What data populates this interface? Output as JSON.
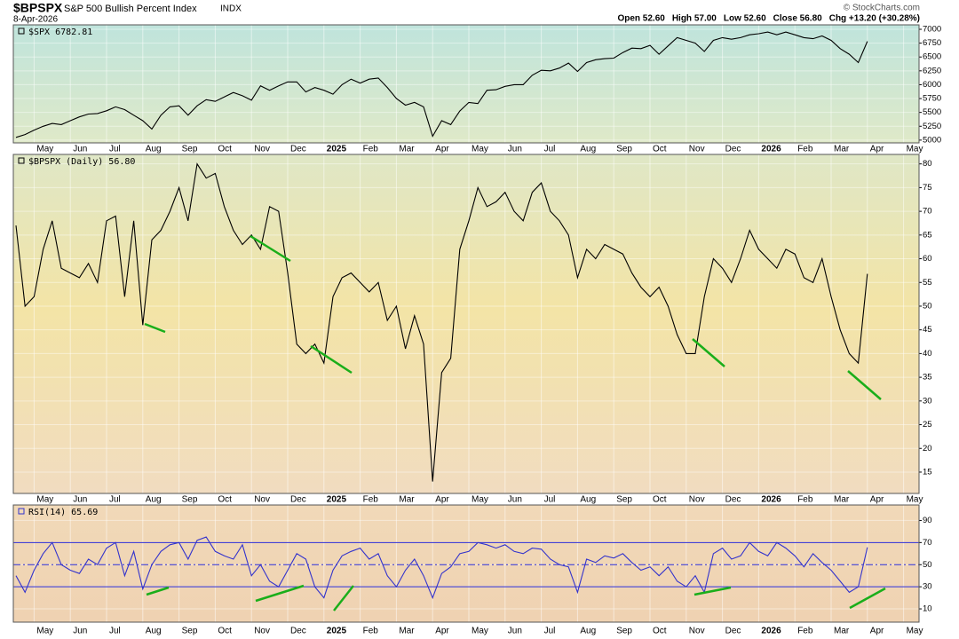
{
  "header": {
    "symbol": "$BPSPX",
    "name": "S&P 500 Bullish Percent Index",
    "exchange": "INDX",
    "date": "8-Apr-2026",
    "quote": [
      "Open 52.60",
      "High 57.00",
      "Low 52.60",
      "Close 56.80",
      "Chg +13.20 (+30.28%)"
    ],
    "copyright": "© StockCharts.com"
  },
  "chart_data": [
    {
      "type": "line",
      "label": "$SPX 6782.81",
      "color": "#000000",
      "categories": [
        null,
        null,
        "May",
        null,
        null,
        null,
        "Jun",
        null,
        null,
        null,
        "Jul",
        null,
        null,
        null,
        "Aug",
        null,
        null,
        null,
        "Sep",
        null,
        null,
        null,
        "Oct",
        null,
        null,
        null,
        "Nov",
        null,
        null,
        null,
        "Dec",
        null,
        null,
        null,
        "2025",
        null,
        null,
        null,
        "Feb",
        null,
        null,
        null,
        "Mar",
        null,
        null,
        null,
        "Apr",
        null,
        null,
        null,
        "May",
        null,
        null,
        null,
        "Jun",
        null,
        null,
        null,
        "Jul",
        null,
        null,
        null,
        "Aug",
        null,
        null,
        null,
        "Sep",
        null,
        null,
        null,
        "Oct",
        null,
        null,
        null,
        "Nov",
        null,
        null,
        null,
        "Dec",
        null,
        null,
        null,
        "2026",
        null,
        null,
        null,
        "Feb",
        null,
        null,
        null,
        "Mar",
        null,
        null,
        null,
        "Apr",
        null,
        null,
        null,
        "May"
      ],
      "values": [
        5050,
        5100,
        5180,
        5250,
        5300,
        5280,
        5350,
        5420,
        5470,
        5480,
        5530,
        5600,
        5550,
        5450,
        5350,
        5200,
        5450,
        5600,
        5620,
        5450,
        5620,
        5730,
        5700,
        5780,
        5860,
        5800,
        5720,
        5980,
        5900,
        5980,
        6050,
        6050,
        5870,
        5950,
        5900,
        5830,
        6000,
        6100,
        6030,
        6100,
        6120,
        5950,
        5750,
        5630,
        5680,
        5600,
        5070,
        5350,
        5280,
        5525,
        5680,
        5660,
        5900,
        5910,
        5970,
        6000,
        6000,
        6170,
        6260,
        6250,
        6300,
        6390,
        6240,
        6400,
        6450,
        6470,
        6480,
        6580,
        6660,
        6650,
        6710,
        6550,
        6700,
        6850,
        6800,
        6750,
        6600,
        6800,
        6850,
        6820,
        6850,
        6900,
        6920,
        6950,
        6900,
        6950,
        6900,
        6850,
        6830,
        6880,
        6800,
        6650,
        6550,
        6400,
        6782.81,
        null,
        null,
        null,
        null
      ],
      "ylim": [
        4950,
        7080
      ],
      "yticks": [
        5000,
        5250,
        5500,
        5750,
        6000,
        6250,
        6500,
        6750,
        7000
      ]
    },
    {
      "type": "line",
      "label": "$BPSPX (Daily) 56.80",
      "color": "#000000",
      "categories": [
        null,
        null,
        "May",
        null,
        null,
        null,
        "Jun",
        null,
        null,
        null,
        "Jul",
        null,
        null,
        null,
        "Aug",
        null,
        null,
        null,
        "Sep",
        null,
        null,
        null,
        "Oct",
        null,
        null,
        null,
        "Nov",
        null,
        null,
        null,
        "Dec",
        null,
        null,
        null,
        "2025",
        null,
        null,
        null,
        "Feb",
        null,
        null,
        null,
        "Mar",
        null,
        null,
        null,
        "Apr",
        null,
        null,
        null,
        "May",
        null,
        null,
        null,
        "Jun",
        null,
        null,
        null,
        "Jul",
        null,
        null,
        null,
        "Aug",
        null,
        null,
        null,
        "Sep",
        null,
        null,
        null,
        "Oct",
        null,
        null,
        null,
        "Nov",
        null,
        null,
        null,
        "Dec",
        null,
        null,
        null,
        "2026",
        null,
        null,
        null,
        "Feb",
        null,
        null,
        null,
        "Mar",
        null,
        null,
        null,
        "Apr",
        null,
        null,
        null,
        "May"
      ],
      "values": [
        67,
        50,
        52,
        62,
        68,
        58,
        57,
        56,
        59,
        55,
        68,
        69,
        52,
        68,
        46,
        64,
        66,
        70,
        75,
        68,
        80,
        77,
        78,
        71,
        66,
        63,
        65,
        62,
        71,
        70,
        57,
        42,
        40,
        42,
        38,
        52,
        56,
        57,
        55,
        53,
        55,
        47,
        50,
        41,
        48,
        42,
        13,
        36,
        39,
        62,
        68,
        75,
        71,
        72,
        74,
        70,
        68,
        74,
        76,
        70,
        68,
        65,
        56,
        62,
        60,
        63,
        62,
        61,
        57,
        54,
        52,
        54,
        50,
        44,
        40,
        40,
        52,
        60,
        58,
        55,
        60,
        66,
        62,
        60,
        58,
        62,
        61,
        56,
        55,
        60,
        52,
        45,
        40,
        38,
        56.8,
        null,
        null,
        null,
        null
      ],
      "ylim": [
        10.5,
        82
      ],
      "yticks": [
        15,
        20,
        25,
        30,
        35,
        40,
        45,
        50,
        55,
        60,
        65,
        70,
        75,
        80
      ]
    },
    {
      "type": "line",
      "label": "RSI(14) 65.69",
      "color": "#3333cc",
      "categories": [
        null,
        null,
        "May",
        null,
        null,
        null,
        "Jun",
        null,
        null,
        null,
        "Jul",
        null,
        null,
        null,
        "Aug",
        null,
        null,
        null,
        "Sep",
        null,
        null,
        null,
        "Oct",
        null,
        null,
        null,
        "Nov",
        null,
        null,
        null,
        "Dec",
        null,
        null,
        null,
        "2025",
        null,
        null,
        null,
        "Feb",
        null,
        null,
        null,
        "Mar",
        null,
        null,
        null,
        "Apr",
        null,
        null,
        null,
        "May",
        null,
        null,
        null,
        "Jun",
        null,
        null,
        null,
        "Jul",
        null,
        null,
        null,
        "Aug",
        null,
        null,
        null,
        "Sep",
        null,
        null,
        null,
        "Oct",
        null,
        null,
        null,
        "Nov",
        null,
        null,
        null,
        "Dec",
        null,
        null,
        null,
        "2026",
        null,
        null,
        null,
        "Feb",
        null,
        null,
        null,
        "Mar",
        null,
        null,
        null,
        "Apr",
        null,
        null,
        null,
        "May"
      ],
      "values": [
        40,
        25,
        45,
        60,
        70,
        50,
        45,
        42,
        55,
        50,
        65,
        70,
        40,
        62,
        28,
        50,
        62,
        68,
        70,
        55,
        72,
        75,
        62,
        58,
        55,
        68,
        40,
        50,
        35,
        30,
        45,
        60,
        55,
        30,
        20,
        45,
        58,
        62,
        65,
        55,
        60,
        40,
        30,
        45,
        55,
        40,
        20,
        42,
        48,
        60,
        62,
        70,
        68,
        65,
        68,
        62,
        60,
        65,
        64,
        55,
        50,
        48,
        25,
        55,
        52,
        58,
        56,
        60,
        52,
        45,
        48,
        40,
        48,
        35,
        30,
        40,
        25,
        60,
        65,
        55,
        58,
        70,
        62,
        58,
        70,
        65,
        58,
        48,
        60,
        52,
        45,
        35,
        25,
        30,
        65.69,
        null,
        null,
        null,
        null
      ],
      "ylim": [
        -2,
        104
      ],
      "yticks": [
        10,
        30,
        50,
        70,
        90
      ],
      "reference_lines": [
        30,
        50,
        70
      ]
    }
  ]
}
